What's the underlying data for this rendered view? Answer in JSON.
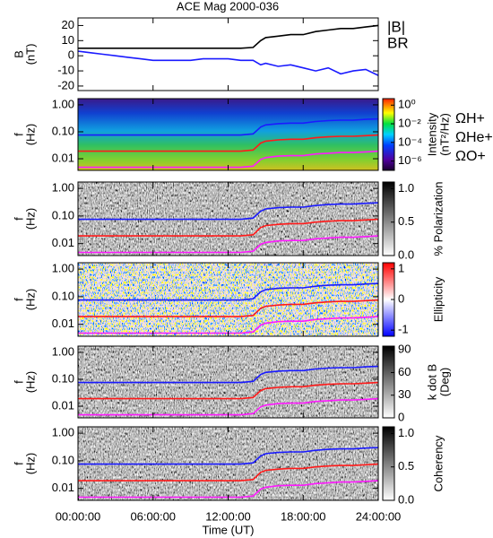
{
  "chart_data": [
    {
      "type": "line",
      "title": "ACE Mag 2000-036",
      "ylabel": [
        "B",
        "(nT)"
      ],
      "ylim": [
        -23,
        25
      ],
      "yticks": [
        -20,
        -10,
        0,
        10,
        20
      ],
      "x": [
        0,
        1,
        2,
        3,
        4,
        5,
        6,
        7,
        8,
        9,
        10,
        11,
        12,
        13,
        14,
        14.6,
        15,
        16,
        17,
        18,
        19,
        20,
        21,
        22,
        23,
        24
      ],
      "series": [
        {
          "name": "|B|",
          "color": "#000000",
          "values": [
            5,
            5,
            5,
            5,
            5,
            5,
            5,
            5,
            5,
            5,
            5,
            5,
            5,
            5,
            5.5,
            10,
            12,
            13,
            14,
            14,
            16,
            17,
            18,
            18,
            19,
            20
          ]
        },
        {
          "name": "BR",
          "color": "#1a1aff",
          "values": [
            3,
            2,
            1,
            0,
            -1,
            -2,
            -3,
            -3,
            -3,
            -3,
            -2,
            -2,
            -2,
            -3,
            -3,
            -6,
            -5,
            -7,
            -6,
            -8,
            -10,
            -8,
            -12,
            -10,
            -9,
            -13
          ]
        }
      ]
    },
    {
      "type": "spectrogram",
      "ylabel": [
        "f",
        "(Hz)"
      ],
      "log_scale": true,
      "ylim": [
        0.0037,
        1.7
      ],
      "yticks": [
        {
          "value": 1,
          "label": "1.00"
        },
        {
          "value": 0.1,
          "label": "0.10"
        },
        {
          "value": 0.01,
          "label": "0.01"
        }
      ],
      "colorbar": {
        "label": [
          "Intensity",
          "(nT²/Hz)"
        ],
        "log_scale": true,
        "lim": [
          1e-07,
          5
        ],
        "ticks": [
          {
            "value": 1,
            "label": "10⁰"
          },
          {
            "value": 0.01,
            "label": "10⁻²"
          },
          {
            "value": 0.0001,
            "label": "10⁻⁴"
          },
          {
            "value": 1e-06,
            "label": "10⁻⁶"
          }
        ]
      },
      "x": [
        0,
        1,
        2,
        3,
        4,
        5,
        6,
        7,
        8,
        9,
        10,
        11,
        12,
        13,
        14,
        14.6,
        15,
        16,
        17,
        18,
        19,
        20,
        21,
        22,
        23,
        24
      ],
      "series": [
        {
          "name": "ΩH+",
          "color": "#1a1aff",
          "values": [
            0.076,
            0.076,
            0.076,
            0.076,
            0.076,
            0.076,
            0.076,
            0.076,
            0.076,
            0.076,
            0.076,
            0.076,
            0.076,
            0.076,
            0.084,
            0.15,
            0.18,
            0.2,
            0.21,
            0.21,
            0.24,
            0.26,
            0.27,
            0.27,
            0.29,
            0.3
          ]
        },
        {
          "name": "ΩHe+",
          "color": "#ff1a1a",
          "values": [
            0.019,
            0.019,
            0.019,
            0.019,
            0.019,
            0.019,
            0.019,
            0.019,
            0.019,
            0.019,
            0.019,
            0.019,
            0.019,
            0.019,
            0.021,
            0.038,
            0.045,
            0.05,
            0.053,
            0.053,
            0.06,
            0.065,
            0.068,
            0.068,
            0.072,
            0.076
          ]
        },
        {
          "name": "ΩO+",
          "color": "#ff1aff",
          "values": [
            0.0048,
            0.0048,
            0.0048,
            0.0048,
            0.0048,
            0.0048,
            0.0048,
            0.0048,
            0.0048,
            0.0048,
            0.0048,
            0.0048,
            0.0048,
            0.0048,
            0.0053,
            0.0094,
            0.011,
            0.0125,
            0.013,
            0.013,
            0.015,
            0.016,
            0.017,
            0.017,
            0.018,
            0.019
          ]
        }
      ]
    },
    {
      "type": "spectrogram",
      "ylabel": [
        "f",
        "(Hz)"
      ],
      "log_scale": true,
      "ylim": [
        0.0037,
        1.7
      ],
      "yticks": [
        {
          "value": 1,
          "label": "1.00"
        },
        {
          "value": 0.1,
          "label": "0.10"
        },
        {
          "value": 0.01,
          "label": "0.01"
        }
      ],
      "colorbar": {
        "label": [
          "% Polarization"
        ],
        "lim": [
          0,
          1.1
        ],
        "ticks": [
          {
            "value": 1,
            "label": "1.0"
          },
          {
            "value": 0.5,
            "label": "0.5"
          },
          {
            "value": 0,
            "label": "0.0"
          }
        ]
      }
    },
    {
      "type": "spectrogram",
      "ylabel": [
        "f",
        "(Hz)"
      ],
      "log_scale": true,
      "ylim": [
        0.0037,
        1.7
      ],
      "yticks": [
        {
          "value": 1,
          "label": "1.00"
        },
        {
          "value": 0.1,
          "label": "0.10"
        },
        {
          "value": 0.01,
          "label": "0.01"
        }
      ],
      "colorbar": {
        "label": [
          "Ellipticity"
        ],
        "lim": [
          -1.2,
          1.2
        ],
        "ticks": [
          1,
          0,
          -1
        ]
      }
    },
    {
      "type": "spectrogram",
      "ylabel": [
        "f",
        "(Hz)"
      ],
      "log_scale": true,
      "ylim": [
        0.0037,
        1.7
      ],
      "yticks": [
        {
          "value": 1,
          "label": "1.00"
        },
        {
          "value": 0.1,
          "label": "0.10"
        },
        {
          "value": 0.01,
          "label": "0.01"
        }
      ],
      "colorbar": {
        "label": [
          "k dot B",
          "(Deg)"
        ],
        "lim": [
          0,
          95
        ],
        "ticks": [
          90,
          60,
          30,
          0
        ]
      }
    },
    {
      "type": "spectrogram",
      "ylabel": [
        "f",
        "(Hz)"
      ],
      "log_scale": true,
      "ylim": [
        0.0037,
        1.7
      ],
      "yticks": [
        {
          "value": 1,
          "label": "1.00"
        },
        {
          "value": 0.1,
          "label": "0.10"
        },
        {
          "value": 0.01,
          "label": "0.01"
        }
      ],
      "colorbar": {
        "label": [
          "Coherency"
        ],
        "lim": [
          0,
          1.1
        ],
        "ticks": [
          {
            "value": 1,
            "label": "1.0"
          },
          {
            "value": 0.5,
            "label": "0.5"
          },
          {
            "value": 0,
            "label": "0.0"
          }
        ]
      },
      "xlabel": "Time (UT)",
      "xlim": [
        0,
        24
      ],
      "xticks": [
        {
          "value": 0,
          "label": "00:00:00"
        },
        {
          "value": 6,
          "label": "06:00:00"
        },
        {
          "value": 12,
          "label": "12:00:00"
        },
        {
          "value": 18,
          "label": "18:00:00"
        },
        {
          "value": 24,
          "label": "24:00:00"
        }
      ]
    }
  ]
}
